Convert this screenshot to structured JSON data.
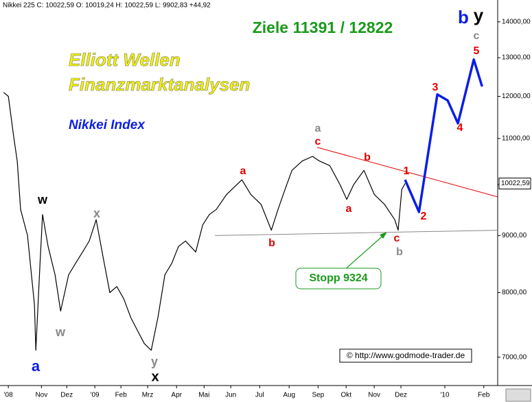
{
  "chart_data": {
    "type": "line",
    "header": "Nikkei 225 C: 10022,59 O: 10019,24 H: 10022,59 L: 9902,83 +44,92",
    "title": "Ziele 11391 / 12822",
    "subtitle_lines": [
      "Elliott Wellen",
      "Finanzmarktanalysen"
    ],
    "index_name": "Nikkei Index",
    "source": "© http://www.godmode-trader.de",
    "log_scale": true,
    "xlim": [
      -0.3,
      17.6
    ],
    "ylim": [
      6620,
      14440
    ],
    "xticks": [
      {
        "value": 0,
        "label": "'08"
      },
      {
        "value": 1.19,
        "label": "Nov"
      },
      {
        "value": 2.1,
        "label": "Dez"
      },
      {
        "value": 3.11,
        "label": "'09"
      },
      {
        "value": 4.05,
        "label": "Feb"
      },
      {
        "value": 5.01,
        "label": "Mrz"
      },
      {
        "value": 6.05,
        "label": "Apr"
      },
      {
        "value": 7.04,
        "label": "Mai"
      },
      {
        "value": 8.0,
        "label": "Jun"
      },
      {
        "value": 9.04,
        "label": "Jul"
      },
      {
        "value": 10.1,
        "label": "Aug"
      },
      {
        "value": 11.14,
        "label": "Sep"
      },
      {
        "value": 12.15,
        "label": "Okt"
      },
      {
        "value": 13.16,
        "label": "Nov"
      },
      {
        "value": 14.12,
        "label": "Dez"
      },
      {
        "value": 15.7,
        "label": "'10"
      },
      {
        "value": 17.1,
        "label": "Feb"
      }
    ],
    "yticks": [
      {
        "value": 7000,
        "label": "7000,00"
      },
      {
        "value": 8000,
        "label": "8000,00"
      },
      {
        "value": 9000,
        "label": "9000,00"
      },
      {
        "value": 10000,
        "label": "10000,00"
      },
      {
        "value": 11000,
        "label": "11000,00"
      },
      {
        "value": 12000,
        "label": "12000,00"
      },
      {
        "value": 13000,
        "label": "13000,00"
      },
      {
        "value": 14000,
        "label": "14000,00"
      }
    ],
    "last_price": {
      "value": 10022.59,
      "label": "10022,59"
    },
    "series": [
      {
        "name": "Nikkei 225",
        "color": "#000000",
        "x": [
          -0.17,
          0,
          0.2,
          0.32,
          0.44,
          0.69,
          0.94,
          0.99,
          1.14,
          1.23,
          1.43,
          1.68,
          1.88,
          2.17,
          2.42,
          2.67,
          2.91,
          3.16,
          3.41,
          3.65,
          3.9,
          4.15,
          4.4,
          4.64,
          4.89,
          5.14,
          5.38,
          5.63,
          5.88,
          6.12,
          6.37,
          6.74,
          6.99,
          7.23,
          7.48,
          7.85,
          8.22,
          8.4,
          8.72,
          9.09,
          9.46,
          9.7,
          9.95,
          10.2,
          10.57,
          10.94,
          11.19,
          11.56,
          11.93,
          12.17,
          12.42,
          12.79,
          13.16,
          13.53,
          13.9,
          14.02,
          14.15,
          14.27
        ],
        "values": [
          12100,
          12000,
          11000,
          10500,
          9500,
          9000,
          7800,
          7100,
          8500,
          9400,
          8800,
          8300,
          7700,
          8300,
          8500,
          8700,
          8900,
          9300,
          8600,
          8000,
          8100,
          7900,
          7600,
          7400,
          7200,
          7100,
          7600,
          8300,
          8500,
          8800,
          8900,
          8700,
          9200,
          9400,
          9500,
          9800,
          10000,
          10100,
          9800,
          9600,
          9100,
          9500,
          9900,
          10300,
          10500,
          10600,
          10500,
          10400,
          10000,
          9700,
          10000,
          10300,
          9800,
          9600,
          9300,
          9100,
          9900,
          10022.59
        ]
      },
      {
        "name": "Prognose",
        "color": "#0a1ee6",
        "x": [
          14.27,
          14.77,
          15.43,
          15.8,
          16.17,
          16.74,
          17.04
        ],
        "values": [
          10100,
          9450,
          12050,
          11900,
          11350,
          12950,
          12250
        ]
      }
    ],
    "trend_lines": [
      {
        "color": "#e00000",
        "x": [
          11.11,
          17.6
        ],
        "values": [
          10800,
          9750
        ]
      },
      {
        "color": "#888888",
        "x": [
          7.43,
          17.6
        ],
        "values": [
          9000,
          9100
        ]
      }
    ],
    "stop_label": "Stopp 9324",
    "wave_labels": [
      {
        "text": "a",
        "color": "#0a1ee6"
      },
      {
        "text": "w",
        "color": "#000000"
      },
      {
        "text": "x",
        "color": "#888888"
      },
      {
        "text": "w",
        "color": "#888888"
      },
      {
        "text": "y",
        "color": "#888888"
      },
      {
        "text": "x",
        "color": "#000000"
      },
      {
        "text": "a",
        "color": "#e00000"
      },
      {
        "text": "b",
        "color": "#e00000"
      },
      {
        "text": "a",
        "color": "#888888"
      },
      {
        "text": "c",
        "color": "#e00000"
      },
      {
        "text": "b",
        "color": "#e00000"
      },
      {
        "text": "a",
        "color": "#e00000"
      },
      {
        "text": "1",
        "color": "#e00000"
      },
      {
        "text": "c",
        "color": "#e00000"
      },
      {
        "text": "b",
        "color": "#888888"
      },
      {
        "text": "2",
        "color": "#e00000"
      },
      {
        "text": "3",
        "color": "#e00000"
      },
      {
        "text": "4",
        "color": "#e00000"
      },
      {
        "text": "5",
        "color": "#e00000"
      },
      {
        "text": "c",
        "color": "#888888"
      },
      {
        "text": "b",
        "color": "#0a1ee6"
      },
      {
        "text": "y",
        "color": "#000000"
      }
    ]
  }
}
